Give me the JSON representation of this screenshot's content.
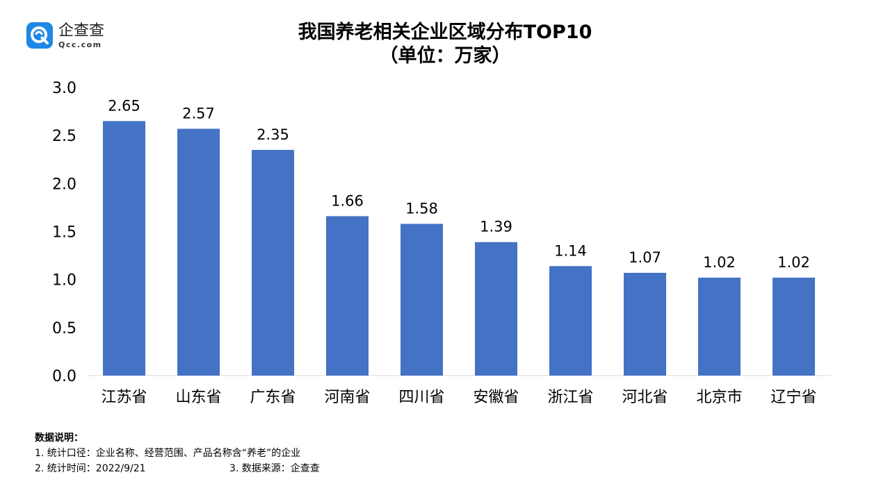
{
  "brand": {
    "name": "企查查",
    "domain": "Qcc.com",
    "color": "#1e88e5"
  },
  "notes": {
    "heading": "数据说明：",
    "line1": "1. 统计口径：企业名称、经营范围、产品名称含“养老”的企业",
    "line2_time": "2. 统计时间：2022/9/21",
    "line2_source": "3. 数据来源：企查查"
  },
  "chart_data": {
    "type": "bar",
    "title": "我国养老相关企业区域分布TOP10",
    "subtitle": "（单位：万家）",
    "categories": [
      "江苏省",
      "山东省",
      "广东省",
      "河南省",
      "四川省",
      "安徽省",
      "浙江省",
      "河北省",
      "北京市",
      "辽宁省"
    ],
    "values": [
      2.65,
      2.57,
      2.35,
      1.66,
      1.58,
      1.39,
      1.14,
      1.07,
      1.02,
      1.02
    ],
    "data_labels": [
      "2.65",
      "2.57",
      "2.35",
      "1.66",
      "1.58",
      "1.39",
      "1.14",
      "1.07",
      "1.02",
      "1.02"
    ],
    "y_ticks": [
      "0.0",
      "0.5",
      "1.0",
      "1.5",
      "2.0",
      "2.5",
      "3.0"
    ],
    "ylim": [
      0,
      3.0
    ],
    "bar_color": "#4472c4",
    "grid": false,
    "legend": "none"
  }
}
